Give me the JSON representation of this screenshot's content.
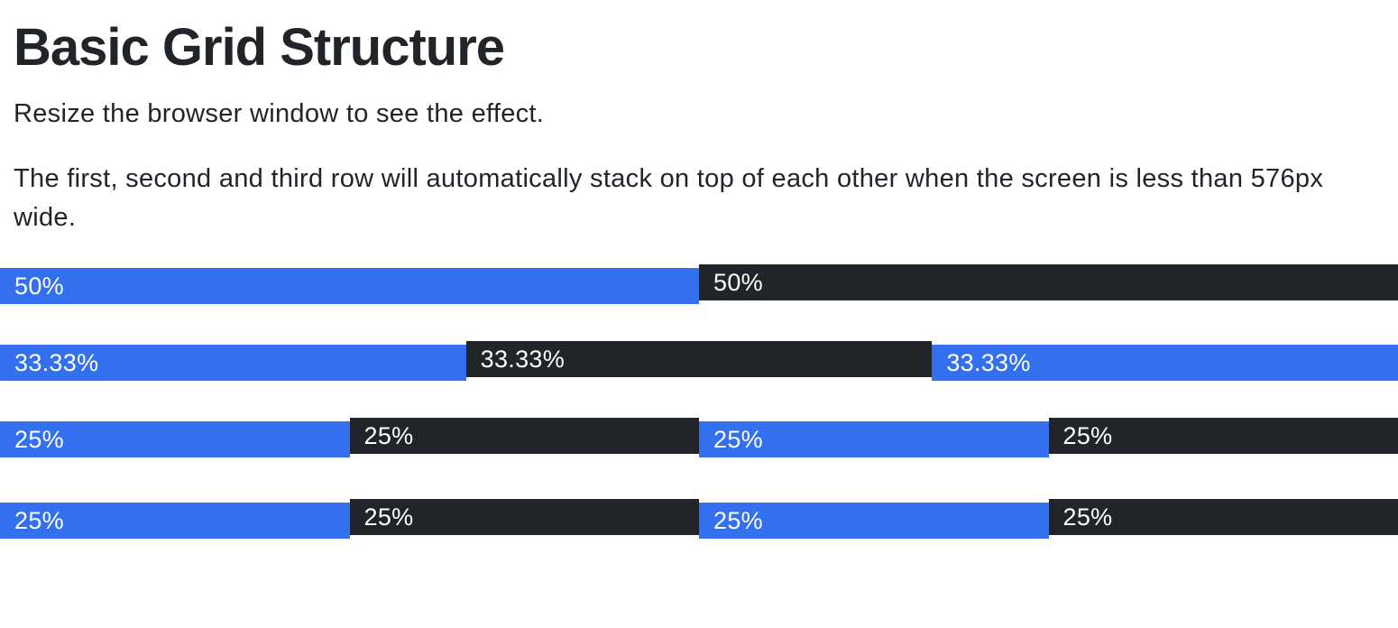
{
  "page": {
    "title": "Basic Grid Structure",
    "paragraph1": "Resize the browser window to see the effect.",
    "paragraph2": "The first, second and third row will automatically stack on top of each other when the screen is less than 576px wide.",
    "paragraph2_lines": [
      "The first, second and third row will automatically stack on top of each other when the screen is less than 576px",
      "wide."
    ]
  },
  "colors": {
    "primary": "#3370f0",
    "dark": "#212529",
    "text": "#212529",
    "column_text": "#ffffff",
    "background": "#ffffff"
  },
  "grid": {
    "rows": [
      {
        "columns": [
          {
            "label": "50%",
            "color": "primary",
            "width": "50%"
          },
          {
            "label": "50%",
            "color": "dark",
            "width": "50%"
          }
        ]
      },
      {
        "columns": [
          {
            "label": "33.33%",
            "color": "primary",
            "width": "33.3333%"
          },
          {
            "label": "33.33%",
            "color": "dark",
            "width": "33.3333%"
          },
          {
            "label": "33.33%",
            "color": "primary",
            "width": "33.3334%"
          }
        ]
      },
      {
        "columns": [
          {
            "label": "25%",
            "color": "primary",
            "width": "25%"
          },
          {
            "label": "25%",
            "color": "dark",
            "width": "25%"
          },
          {
            "label": "25%",
            "color": "primary",
            "width": "25%"
          },
          {
            "label": "25%",
            "color": "dark",
            "width": "25%"
          }
        ]
      },
      {
        "columns": [
          {
            "label": "25%",
            "color": "primary",
            "width": "25%"
          },
          {
            "label": "25%",
            "color": "dark",
            "width": "25%"
          },
          {
            "label": "25%",
            "color": "primary",
            "width": "25%"
          },
          {
            "label": "25%",
            "color": "dark",
            "width": "25%"
          }
        ]
      }
    ]
  }
}
